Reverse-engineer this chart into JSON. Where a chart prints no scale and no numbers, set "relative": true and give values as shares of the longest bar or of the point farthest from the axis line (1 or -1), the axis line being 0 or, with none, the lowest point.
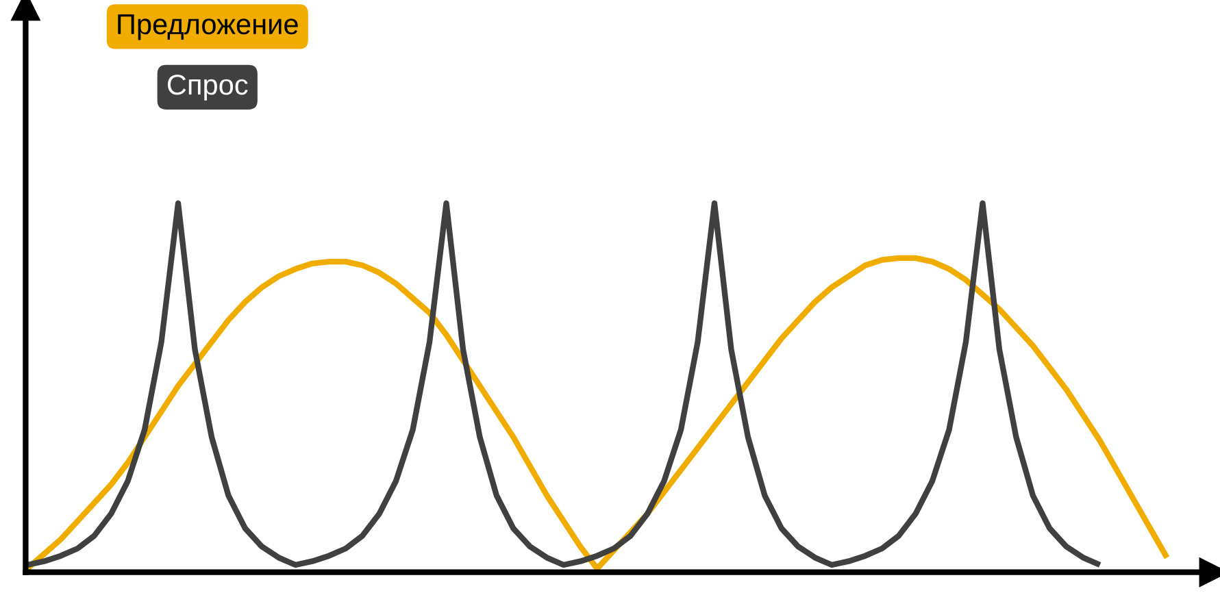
{
  "chart_data": {
    "type": "line",
    "relative": true,
    "legend": "top left",
    "marker": "none",
    "line_style": "solid",
    "categories": [
      null,
      null,
      null,
      null,
      null,
      null,
      null,
      null,
      null,
      null,
      null,
      null,
      null,
      null,
      null,
      null,
      null,
      null,
      null,
      null,
      null,
      null,
      null,
      null,
      null,
      null,
      null,
      null,
      null,
      null,
      null,
      null,
      null,
      null,
      null,
      null,
      null,
      null,
      null,
      null,
      null,
      null,
      null,
      null,
      null,
      null,
      null,
      null,
      null,
      null,
      null,
      null,
      null,
      null,
      null,
      null,
      null,
      null,
      null,
      null,
      null,
      null,
      null,
      null,
      null,
      null,
      null,
      null,
      null
    ],
    "series": [
      {
        "name": "Предложение",
        "color": "#f0ad00",
        "values": [
          0,
          0.04,
          0.08,
          0.13,
          0.18,
          0.23,
          0.29,
          0.36,
          0.43,
          0.5,
          0.56,
          0.62,
          0.68,
          0.73,
          0.77,
          0.8,
          0.82,
          0.835,
          0.84,
          0.84,
          0.83,
          0.81,
          0.78,
          0.74,
          0.7,
          0.64,
          0.57,
          0.5,
          0.43,
          0.36,
          0.28,
          0.2,
          0.13,
          0.06,
          0,
          0.05,
          0.1,
          0.15,
          0.21,
          0.27,
          0.33,
          0.39,
          0.45,
          0.51,
          0.57,
          0.63,
          0.68,
          0.73,
          0.77,
          0.8,
          0.83,
          0.845,
          0.85,
          0.85,
          0.84,
          0.82,
          0.79,
          0.75,
          0.71,
          0.66,
          0.61,
          0.55,
          0.49,
          0.42,
          0.35,
          0.27,
          0.19,
          0.11,
          0.03
        ]
      },
      {
        "name": "Спрос",
        "color": "#404040",
        "values": [
          0.01,
          0.02,
          0.035,
          0.055,
          0.09,
          0.15,
          0.24,
          0.38,
          0.62,
          1,
          0.6,
          0.36,
          0.2,
          0.11,
          0.06,
          0.03,
          0.01,
          0.02,
          0.035,
          0.055,
          0.09,
          0.15,
          0.24,
          0.38,
          0.62,
          1,
          0.6,
          0.36,
          0.2,
          0.11,
          0.06,
          0.03,
          0.01,
          0.02,
          0.035,
          0.055,
          0.09,
          0.15,
          0.24,
          0.38,
          0.62,
          1,
          0.6,
          0.36,
          0.2,
          0.11,
          0.06,
          0.03,
          0.01,
          0.02,
          0.035,
          0.055,
          0.09,
          0.15,
          0.24,
          0.38,
          0.62,
          1,
          0.6,
          0.36,
          0.2,
          0.11,
          0.06,
          0.03,
          0.01,
          null,
          null,
          null,
          null
        ]
      }
    ]
  }
}
